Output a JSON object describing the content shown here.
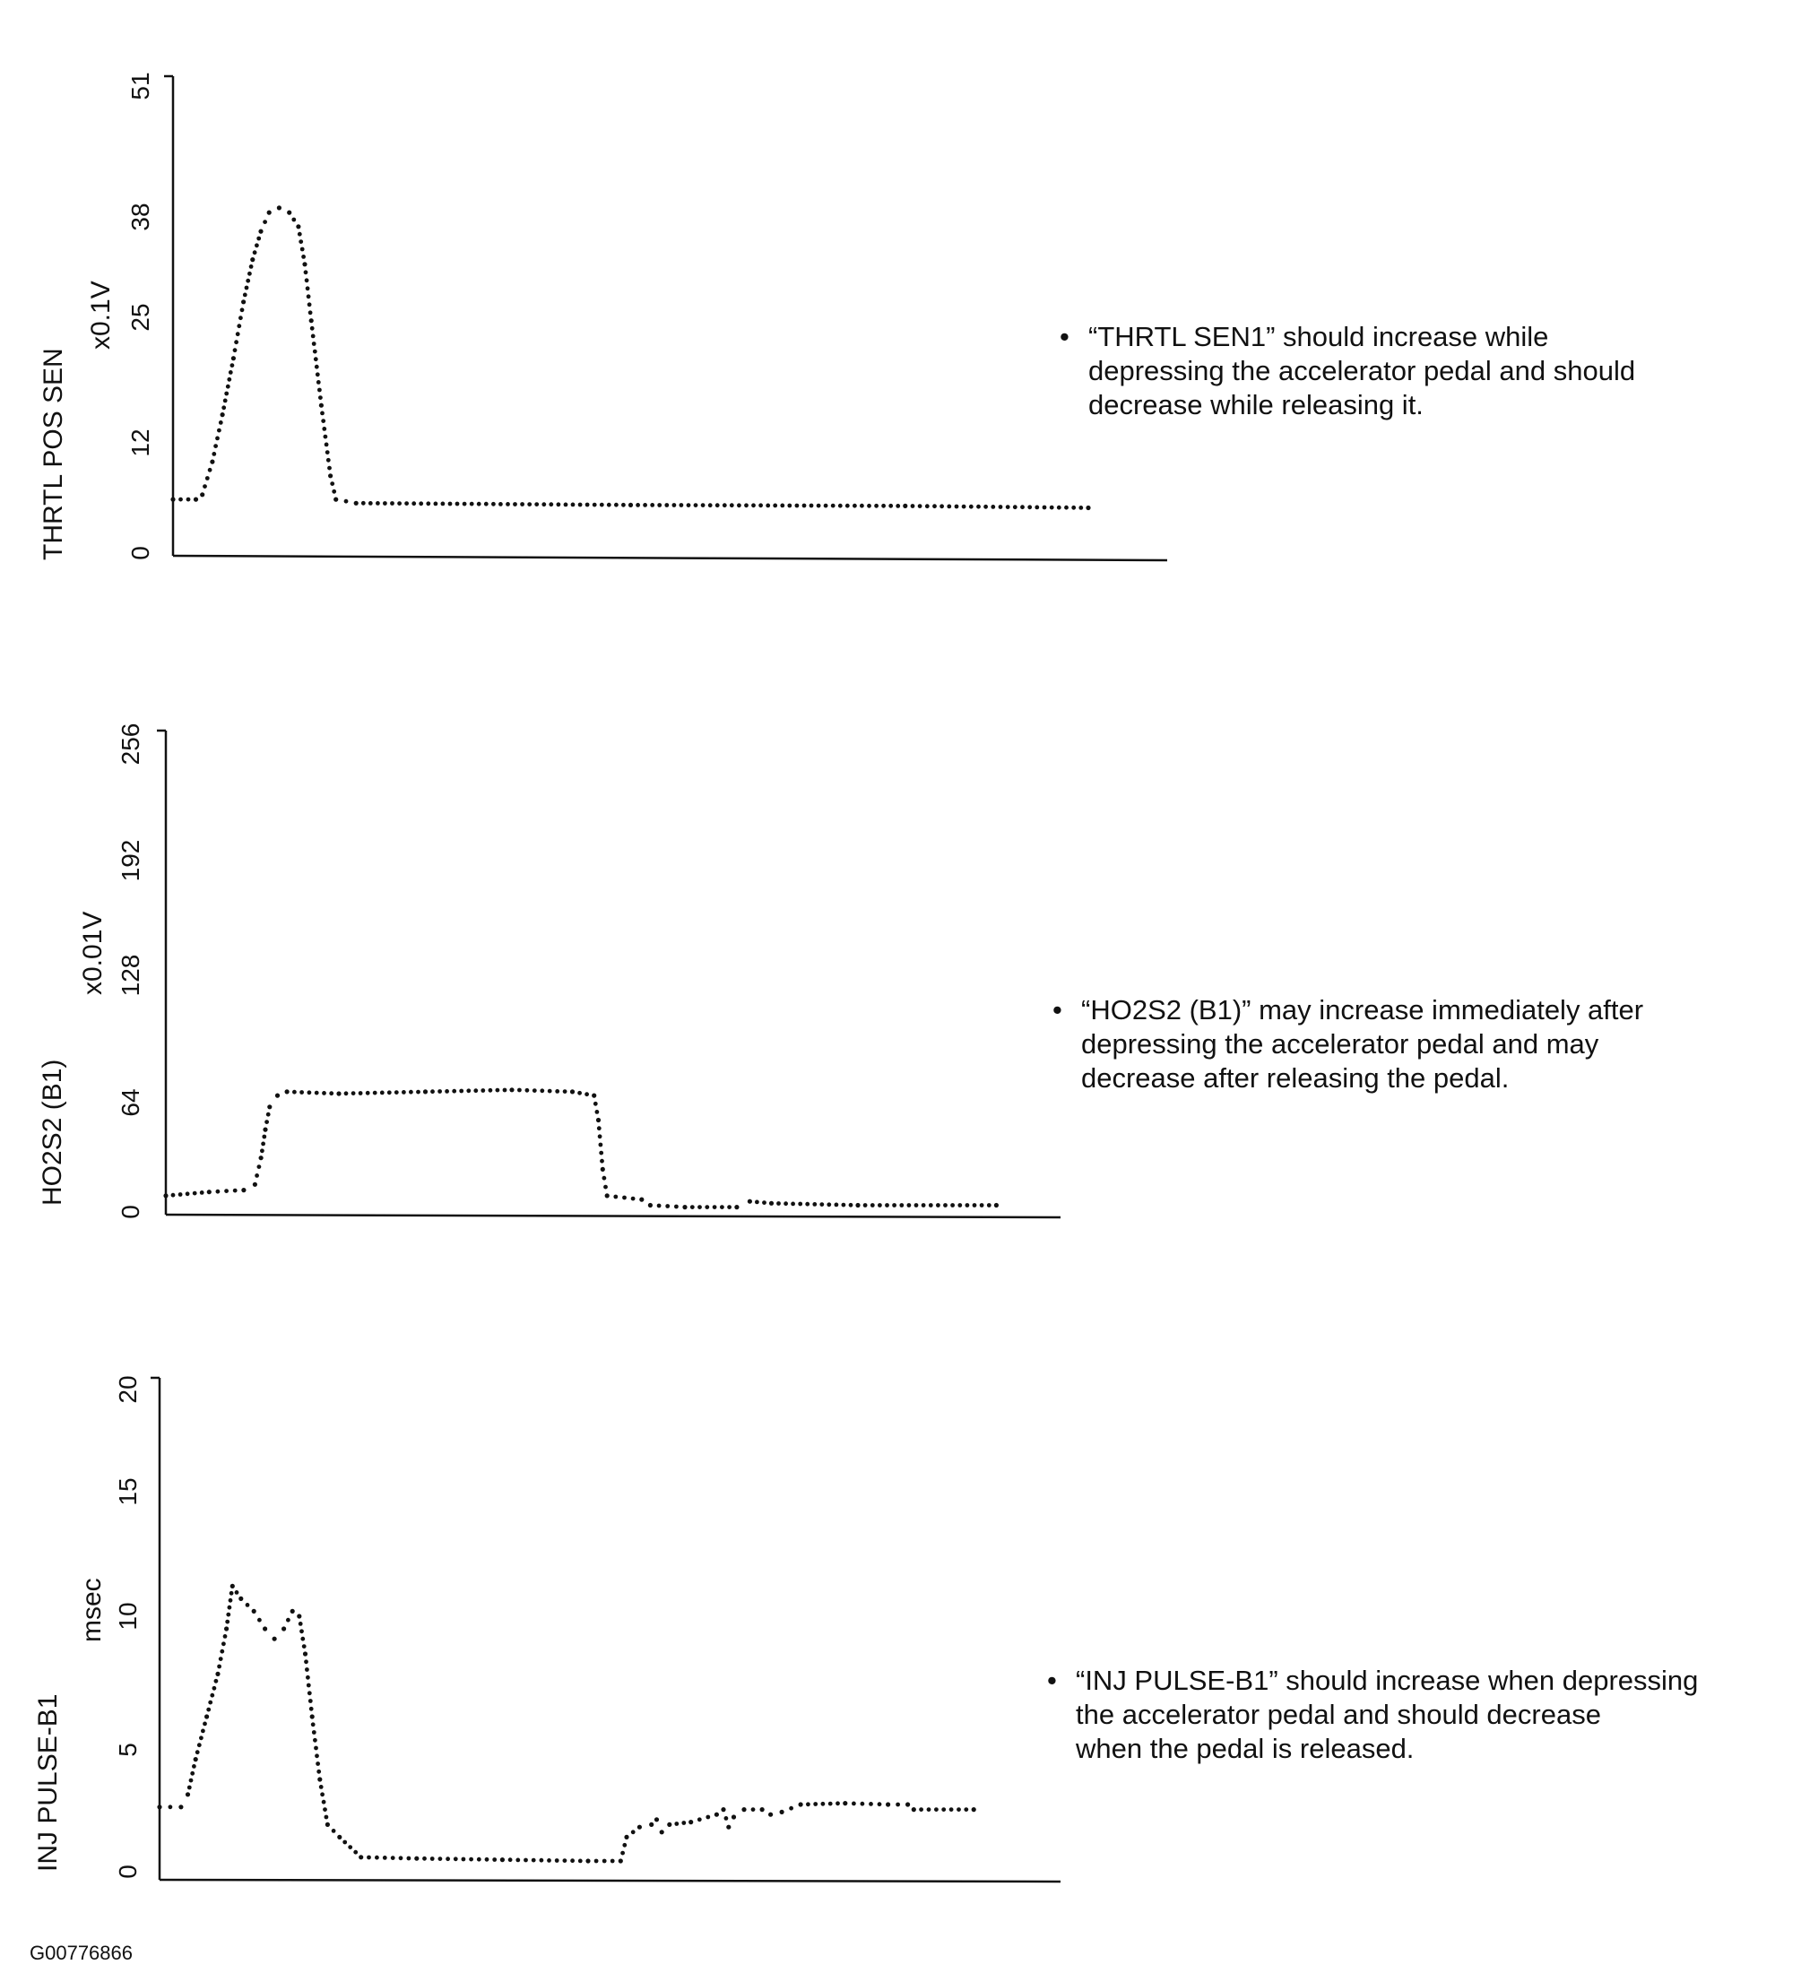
{
  "figure_id": "G00776866",
  "colors": {
    "ink": "#111111",
    "background": "#ffffff"
  },
  "chart_data": [
    {
      "type": "scatter",
      "title": "",
      "ylabel": "THRTL POS SEN",
      "yunit": "x0.1V",
      "xlabel": "",
      "yticks": [
        0,
        12,
        25,
        38,
        51
      ],
      "ylim": [
        0,
        51
      ],
      "xlim": [
        0,
        100
      ],
      "grid": false,
      "note": "“THRTL SEN1” should increase while depressing the accelerator pedal and should decrease while releasing it.",
      "note_lines": [
        "“THRTL SEN1” should increase while",
        "depressing the accelerator pedal and should",
        "decrease while releasing it."
      ],
      "series": [
        {
          "name": "THRTL POS SEN",
          "points": [
            [
              0,
              6
            ],
            [
              2.5,
              6
            ],
            [
              3.2,
              6.5
            ],
            [
              4.3,
              10
            ],
            [
              5.4,
              15
            ],
            [
              6.6,
              21
            ],
            [
              7.7,
              27
            ],
            [
              8.7,
              31.5
            ],
            [
              9.6,
              34.5
            ],
            [
              10.5,
              36.5
            ],
            [
              11.6,
              37
            ],
            [
              12.7,
              36.5
            ],
            [
              13.7,
              35
            ],
            [
              14.4,
              31
            ],
            [
              15.1,
              25
            ],
            [
              16.2,
              16
            ],
            [
              17.2,
              8.5
            ],
            [
              17.8,
              6
            ],
            [
              20,
              5.6
            ],
            [
              50,
              5.4
            ],
            [
              80,
              5.3
            ],
            [
              100,
              5.1
            ]
          ]
        }
      ]
    },
    {
      "type": "scatter",
      "title": "",
      "ylabel": "HO2S2 (B1)",
      "yunit": "x0.01V",
      "xlabel": "",
      "yticks": [
        0,
        64,
        128,
        192,
        256
      ],
      "ylim": [
        0,
        256
      ],
      "xlim": [
        0,
        100
      ],
      "grid": false,
      "note": "“HO2S2 (B1)” may increase immediately after depressing the accelerator pedal and may decrease after releasing the pedal.",
      "note_lines": [
        "“HO2S2 (B1)” may increase immediately after",
        "depressing the accelerator pedal and may",
        "decrease after releasing the pedal."
      ],
      "series": [
        {
          "name": "HO2S2 (B1)",
          "points": [
            [
              0,
              10
            ],
            [
              5,
              12
            ],
            [
              9,
              13
            ],
            [
              10.3,
              16
            ],
            [
              11,
              30
            ],
            [
              11.5,
              45
            ],
            [
              12,
              57
            ],
            [
              12.9,
              63
            ],
            [
              14,
              65
            ],
            [
              20,
              64
            ],
            [
              30,
              65
            ],
            [
              40,
              66
            ],
            [
              47,
              65
            ],
            [
              49.5,
              63
            ],
            [
              50,
              50
            ],
            [
              50.5,
              24
            ],
            [
              51,
              10
            ],
            [
              55,
              8
            ],
            [
              56,
              5
            ],
            [
              60,
              4
            ],
            [
              66,
              4
            ],
            [
              67.5,
              7
            ],
            [
              70,
              6
            ],
            [
              80,
              5
            ],
            [
              96,
              5
            ]
          ]
        }
      ]
    },
    {
      "type": "scatter",
      "title": "",
      "ylabel": "INJ PULSE-B1",
      "yunit": "msec",
      "xlabel": "",
      "yticks": [
        0,
        5,
        10,
        15,
        20
      ],
      "ylim": [
        0,
        20
      ],
      "xlim": [
        0,
        100
      ],
      "grid": false,
      "note": "“INJ PULSE-B1” should increase when depressing the accelerator pedal and should decrease when the pedal is released.",
      "note_lines": [
        "“INJ PULSE-B1” should increase when depressing",
        "the accelerator pedal and should decrease",
        "when the pedal is released."
      ],
      "series": [
        {
          "name": "INJ PULSE-B1",
          "points": [
            [
              0,
              2.9
            ],
            [
              2.5,
              2.9
            ],
            [
              3.3,
              3.4
            ],
            [
              4.2,
              4.8
            ],
            [
              5.5,
              6.5
            ],
            [
              6.8,
              8.2
            ],
            [
              7.8,
              10
            ],
            [
              8.5,
              11.7
            ],
            [
              9.5,
              11.2
            ],
            [
              11,
              10.7
            ],
            [
              12.3,
              10
            ],
            [
              13.4,
              9.6
            ],
            [
              14.5,
              10
            ],
            [
              15.5,
              10.7
            ],
            [
              16.3,
              10.5
            ],
            [
              17,
              9
            ],
            [
              17.8,
              6.5
            ],
            [
              18.7,
              4
            ],
            [
              19.6,
              2.2
            ],
            [
              21,
              1.7
            ],
            [
              23.5,
              0.9
            ],
            [
              30,
              0.85
            ],
            [
              40,
              0.8
            ],
            [
              50,
              0.75
            ],
            [
              53.8,
              0.75
            ],
            [
              54.5,
              1.7
            ],
            [
              56,
              2.1
            ],
            [
              57.4,
              2.2
            ],
            [
              58,
              2.4
            ],
            [
              58.6,
              1.9
            ],
            [
              59.5,
              2.2
            ],
            [
              62,
              2.3
            ],
            [
              65,
              2.6
            ],
            [
              65.8,
              2.8
            ],
            [
              66.4,
              2.1
            ],
            [
              67,
              2.5
            ],
            [
              68.2,
              2.8
            ],
            [
              70.3,
              2.8
            ],
            [
              71.3,
              2.6
            ],
            [
              72.6,
              2.7
            ],
            [
              74.8,
              3
            ],
            [
              80,
              3.05
            ],
            [
              85,
              3
            ],
            [
              87.3,
              3
            ],
            [
              88,
              2.8
            ],
            [
              95,
              2.8
            ]
          ]
        }
      ]
    }
  ]
}
